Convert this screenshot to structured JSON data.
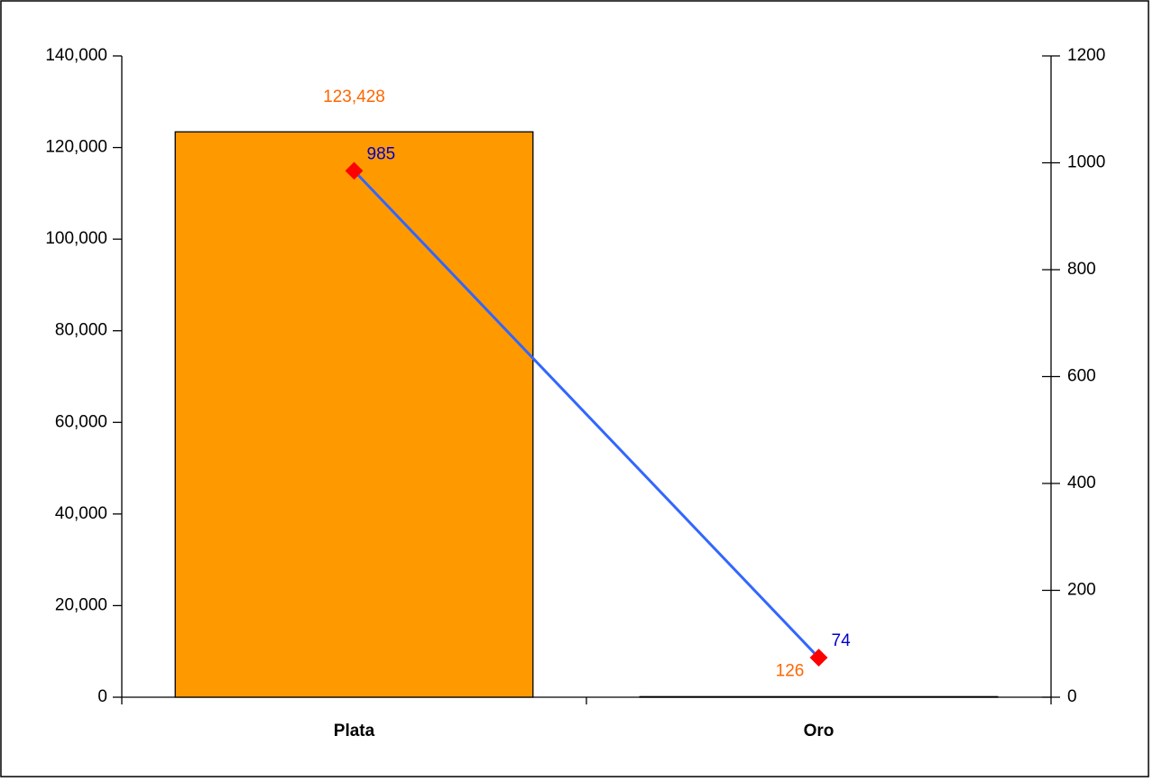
{
  "chart_data": {
    "type": "combo",
    "categories": [
      "Plata",
      "Oro"
    ],
    "series": [
      {
        "type": "bar",
        "color": "#ff9900",
        "label_color": "#ff6600",
        "values": [
          123428,
          126
        ],
        "value_labels": [
          "123,428",
          "126"
        ]
      },
      {
        "type": "line",
        "axis": "y2",
        "color": "#3366ff",
        "marker_color": "#ff0000",
        "label_color": "#0000cc",
        "values": [
          985,
          74
        ]
      }
    ],
    "ylim": [
      0,
      140000
    ],
    "yticks": [
      0,
      {
        "value": 20000,
        "label": "20,000"
      },
      {
        "value": 40000,
        "label": "40,000"
      },
      {
        "value": 60000,
        "label": "60,000"
      },
      {
        "value": 80000,
        "label": "80,000"
      },
      {
        "value": 100000,
        "label": "100,000"
      },
      {
        "value": 120000,
        "label": "120,000"
      },
      {
        "value": 140000,
        "label": "140,000"
      }
    ],
    "y2lim": [
      0,
      1200
    ],
    "y2ticks": [
      0,
      200,
      400,
      600,
      800,
      1000,
      1200
    ]
  }
}
